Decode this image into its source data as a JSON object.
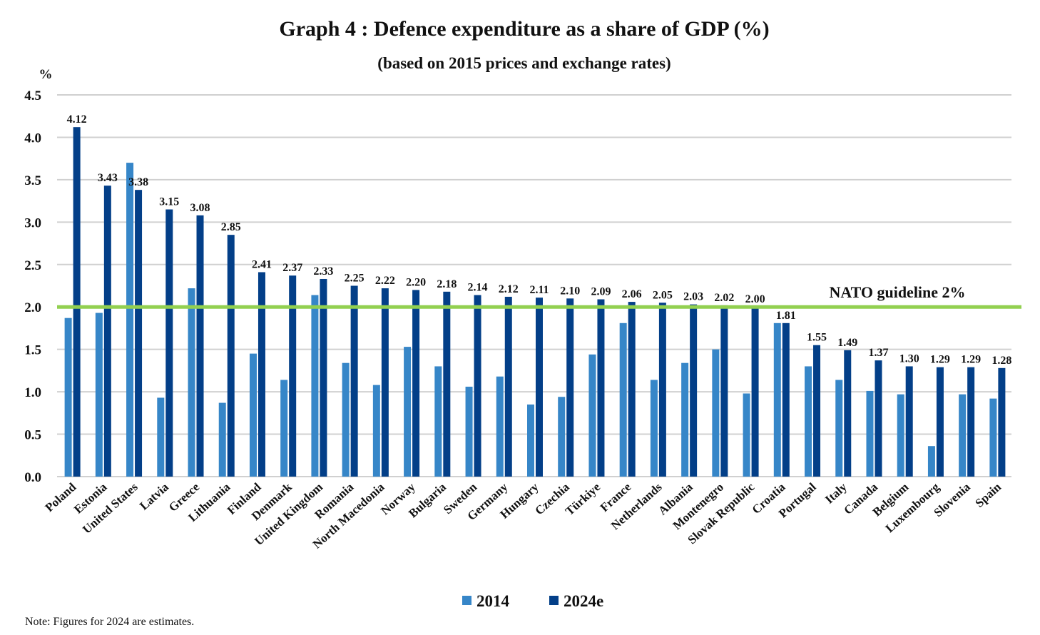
{
  "chart_data": {
    "type": "bar",
    "title": "Graph 4 : Defence expenditure as a share of GDP (%)",
    "subtitle": "(based on 2015 prices and exchange rates)",
    "ylabel": "%",
    "ylim": [
      0,
      4.5
    ],
    "yticks": [
      "0.0",
      "0.5",
      "1.0",
      "1.5",
      "2.0",
      "2.5",
      "3.0",
      "3.5",
      "4.0",
      "4.5"
    ],
    "grid": true,
    "legend_position": "bottom",
    "categories": [
      "Poland",
      "Estonia",
      "United States",
      "Latvia",
      "Greece",
      "Lithuania",
      "Finland",
      "Denmark",
      "United Kingdom",
      "Romania",
      "North Macedonia",
      "Norway",
      "Bulgaria",
      "Sweden",
      "Germany",
      "Hungary",
      "Czechia",
      "Türkiye",
      "France",
      "Netherlands",
      "Albania",
      "Montenegro",
      "Slovak Republic",
      "Croatia",
      "Portugal",
      "Italy",
      "Canada",
      "Belgium",
      "Luxembourg",
      "Slovenia",
      "Spain"
    ],
    "series": [
      {
        "name": "2014",
        "color": "#3686c8",
        "values": [
          1.87,
          1.93,
          3.7,
          0.93,
          2.22,
          0.87,
          1.45,
          1.14,
          2.14,
          1.34,
          1.08,
          1.53,
          1.3,
          1.06,
          1.18,
          0.85,
          0.94,
          1.44,
          1.81,
          1.14,
          1.34,
          1.5,
          0.98,
          1.81,
          1.3,
          1.14,
          1.01,
          0.97,
          0.36,
          0.97,
          0.92
        ]
      },
      {
        "name": "2024e",
        "color": "#033f88",
        "values": [
          4.12,
          3.43,
          3.38,
          3.15,
          3.08,
          2.85,
          2.41,
          2.37,
          2.33,
          2.25,
          2.22,
          2.2,
          2.18,
          2.14,
          2.12,
          2.11,
          2.1,
          2.09,
          2.06,
          2.05,
          2.03,
          2.02,
          2.0,
          1.81,
          1.55,
          1.49,
          1.37,
          1.3,
          1.29,
          1.29,
          1.28
        ],
        "data_labels": [
          "4.12",
          "3.43",
          "3.38",
          "3.15",
          "3.08",
          "2.85",
          "2.41",
          "2.37",
          "2.33",
          "2.25",
          "2.22",
          "2.20",
          "2.18",
          "2.14",
          "2.12",
          "2.11",
          "2.10",
          "2.09",
          "2.06",
          "2.05",
          "2.03",
          "2.02",
          "2.00",
          "1.81",
          "1.55",
          "1.49",
          "1.37",
          "1.30",
          "1.29",
          "1.29",
          "1.28"
        ]
      }
    ],
    "reference_line": {
      "value": 2.0,
      "label": "NATO guideline 2%",
      "color": "#92d050"
    },
    "note": "Note: Figures for 2024 are estimates."
  }
}
